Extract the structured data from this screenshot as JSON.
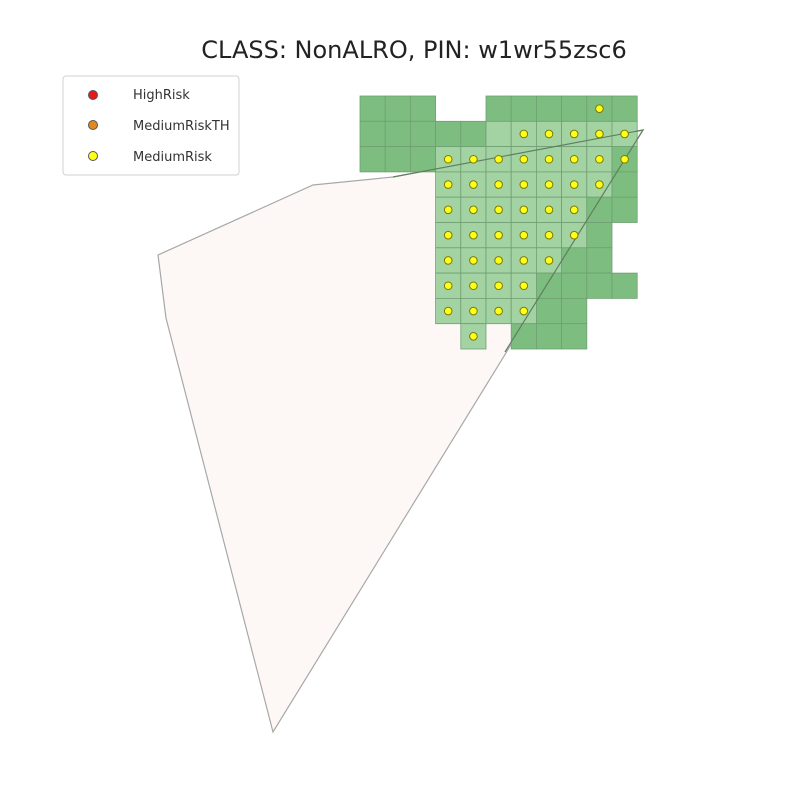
{
  "title": "CLASS: NonALRO, PIN: w1wr55zsc6",
  "legend": [
    {
      "label": "HighRisk",
      "color": "#e41a1c"
    },
    {
      "label": "MediumRiskTH",
      "color": "#e08a1e"
    },
    {
      "label": "MediumRisk",
      "color": "#ffff1a"
    }
  ],
  "colors": {
    "parcel_fill": "#fdf8f6",
    "parcel_stroke": "#a8a8a8",
    "grid_fill": "#7dbe80",
    "grid_inside_fill": "#a3d3a3",
    "grid_stroke": "#6f9f72",
    "point_stroke": "#7a7a00"
  }
}
